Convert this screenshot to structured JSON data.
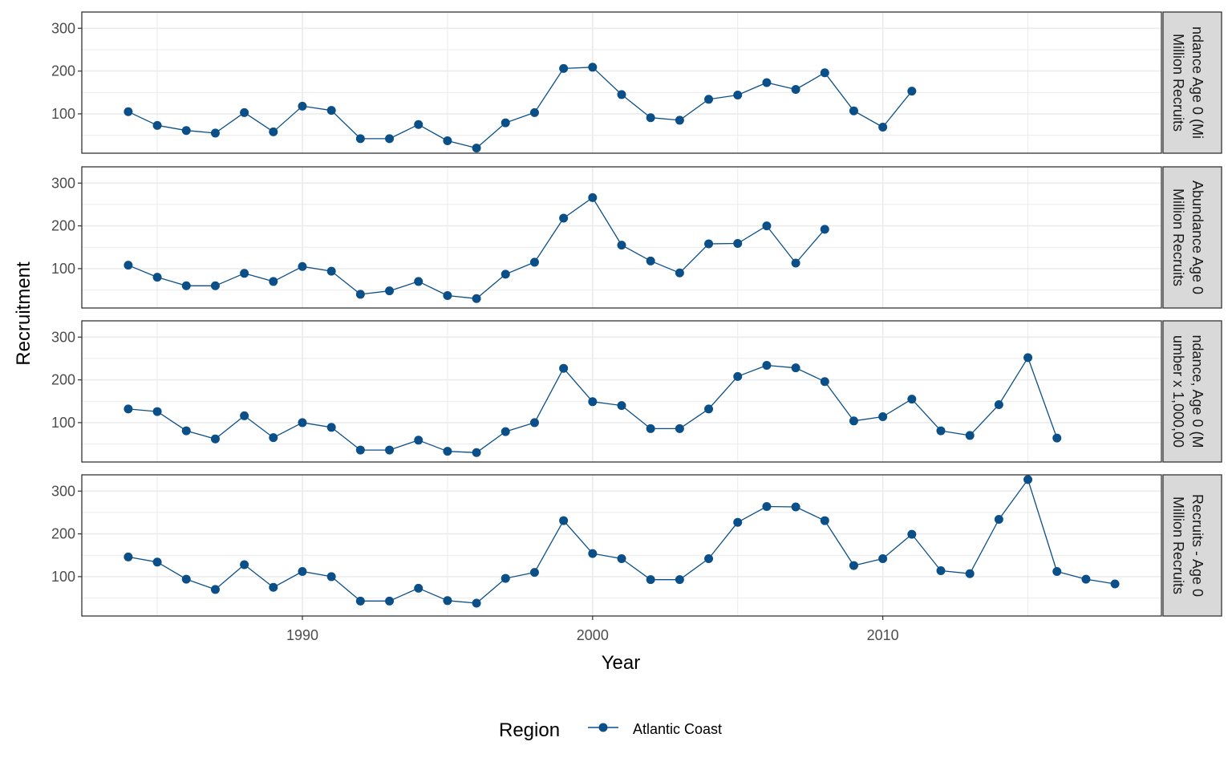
{
  "chart_data": {
    "type": "line",
    "xlabel": "Year",
    "ylabel": "Recruitment",
    "xlim": [
      1982.4,
      2019.6
    ],
    "ylim": [
      8,
      338
    ],
    "x_ticks": [
      1990,
      2000,
      2010
    ],
    "y_ticks": [
      100,
      200,
      300
    ],
    "grid": true,
    "legend": {
      "title": "Region",
      "position": "bottom",
      "entries": [
        "Atlantic Coast"
      ]
    },
    "colors": {
      "series": "#0b4f88",
      "grid": "#ebebeb",
      "strip_fill": "#d9d9d9",
      "panel_border": "#333333"
    },
    "panels": [
      {
        "strip": [
          "ndance Age 0 (Mi",
          "Million Recruits"
        ],
        "series": [
          {
            "name": "Atlantic Coast",
            "x": [
              1984,
              1985,
              1986,
              1987,
              1988,
              1989,
              1990,
              1991,
              1992,
              1993,
              1994,
              1995,
              1996,
              1997,
              1998,
              1999,
              2000,
              2001,
              2002,
              2003,
              2004,
              2005,
              2006,
              2007,
              2008,
              2009,
              2010,
              2011
            ],
            "values": [
              105,
              73,
              61,
              55,
              103,
              58,
              118,
              108,
              42,
              42,
              75,
              37,
              20,
              79,
              103,
              206,
              209,
              145,
              91,
              85,
              134,
              144,
              173,
              157,
              196,
              107,
              69,
              153
            ]
          }
        ]
      },
      {
        "strip": [
          "Abundance Age 0",
          "Million Recruits"
        ],
        "series": [
          {
            "name": "Atlantic Coast",
            "x": [
              1984,
              1985,
              1986,
              1987,
              1988,
              1989,
              1990,
              1991,
              1992,
              1993,
              1994,
              1995,
              1996,
              1997,
              1998,
              1999,
              2000,
              2001,
              2002,
              2003,
              2004,
              2005,
              2006,
              2007,
              2008
            ],
            "values": [
              108,
              80,
              60,
              60,
              89,
              70,
              105,
              94,
              40,
              48,
              70,
              37,
              30,
              87,
              115,
              218,
              266,
              155,
              118,
              90,
              158,
              159,
              200,
              113,
              192
            ]
          }
        ]
      },
      {
        "strip": [
          "ndance, Age 0 (M",
          "umber x 1,000,00"
        ],
        "series": [
          {
            "name": "Atlantic Coast",
            "x": [
              1984,
              1985,
              1986,
              1987,
              1988,
              1989,
              1990,
              1991,
              1992,
              1993,
              1994,
              1995,
              1996,
              1997,
              1998,
              1999,
              2000,
              2001,
              2002,
              2003,
              2004,
              2005,
              2006,
              2007,
              2008,
              2009,
              2010,
              2011,
              2012,
              2013,
              2014,
              2015,
              2016
            ],
            "values": [
              132,
              126,
              81,
              62,
              116,
              65,
              100,
              89,
              36,
              36,
              59,
              33,
              30,
              79,
              100,
              227,
              149,
              140,
              86,
              86,
              132,
              208,
              234,
              228,
              196,
              104,
              114,
              155,
              81,
              70,
              142,
              252,
              64
            ]
          }
        ]
      },
      {
        "strip": [
          "Recruits - Age 0",
          "Million Recruits"
        ],
        "series": [
          {
            "name": "Atlantic Coast",
            "x": [
              1984,
              1985,
              1986,
              1987,
              1988,
              1989,
              1990,
              1991,
              1992,
              1993,
              1994,
              1995,
              1996,
              1997,
              1998,
              1999,
              2000,
              2001,
              2002,
              2003,
              2004,
              2005,
              2006,
              2007,
              2008,
              2009,
              2010,
              2011,
              2012,
              2013,
              2014,
              2015,
              2016,
              2017,
              2018
            ],
            "values": [
              146,
              134,
              94,
              70,
              128,
              75,
              112,
              100,
              43,
              43,
              73,
              44,
              38,
              96,
              110,
              231,
              154,
              142,
              93,
              93,
              142,
              227,
              264,
              263,
              231,
              126,
              142,
              199,
              114,
              107,
              234,
              327,
              112,
              94,
              83
            ]
          }
        ]
      }
    ]
  }
}
